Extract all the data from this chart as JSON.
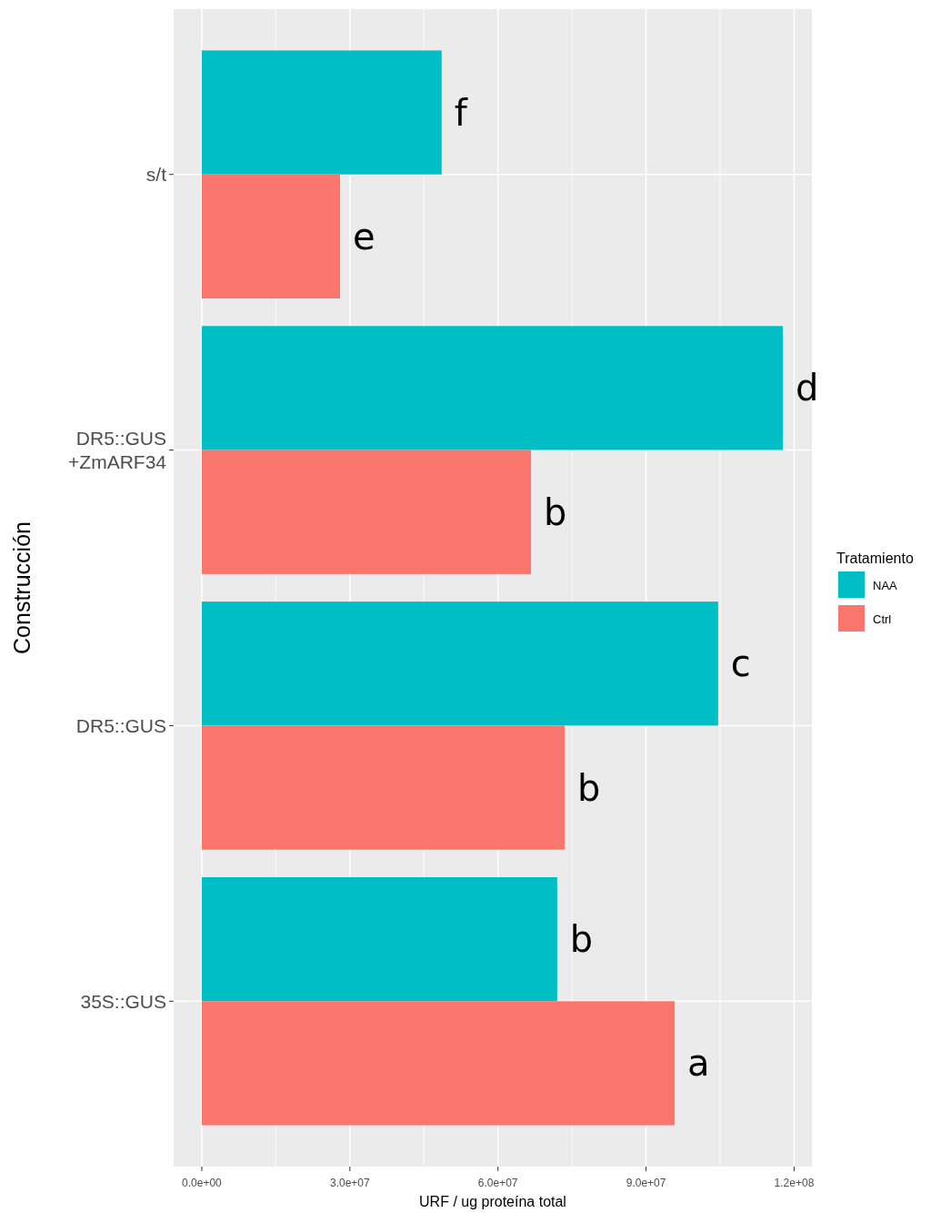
{
  "chart_data": {
    "type": "bar",
    "orientation": "horizontal",
    "xlabel": "URF / ug proteína total",
    "ylabel": "Construcción",
    "legend_title": "Tratamiento",
    "categories": [
      "s/t",
      "DR5::GUS\n+ZmARF34",
      "DR5::GUS",
      "35S::GUS"
    ],
    "series": [
      {
        "name": "NAA",
        "color": "#00bfc4",
        "values": [
          48600000,
          117700000,
          104600000,
          72000000
        ],
        "value_labels": [
          "f",
          "d",
          "c",
          "b"
        ]
      },
      {
        "name": "Ctrl",
        "color": "#f8766d",
        "values": [
          28000000,
          66700000,
          73500000,
          95800000
        ],
        "value_labels": [
          "e",
          "b",
          "b",
          "a"
        ]
      }
    ],
    "xlim": [
      -5700000,
      123600000
    ],
    "xticks": [
      {
        "value": 0,
        "label": "0.0e+00"
      },
      {
        "value": 15000000,
        "label": null
      },
      {
        "value": 30000000,
        "label": "3.0e+07"
      },
      {
        "value": 45000000,
        "label": null
      },
      {
        "value": 60000000,
        "label": "6.0e+07"
      },
      {
        "value": 75000000,
        "label": null
      },
      {
        "value": 90000000,
        "label": "9.0e+07"
      },
      {
        "value": 105000000,
        "label": null
      },
      {
        "value": 120000000,
        "label": "1.2e+08"
      }
    ],
    "grid": true,
    "legend": "right"
  }
}
